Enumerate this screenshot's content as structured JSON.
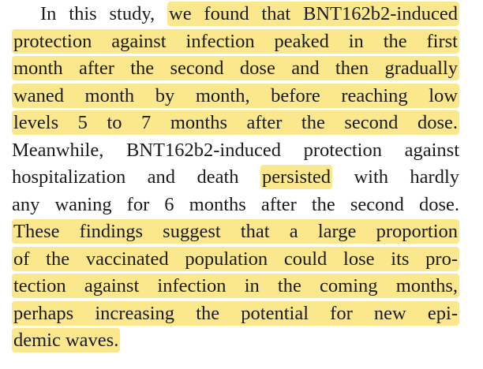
{
  "paragraph": {
    "lines": [
      [
        {
          "text": "In this study,",
          "highlight": false
        },
        {
          "text": "we found that BNT162b2-induced",
          "highlight": true
        }
      ],
      [
        {
          "text": "protection against infection peaked in the first",
          "highlight": true
        }
      ],
      [
        {
          "text": "month after the second dose and then gradually",
          "highlight": true
        }
      ],
      [
        {
          "text": "waned month by month, before reaching low",
          "highlight": true
        }
      ],
      [
        {
          "text": "levels 5 to 7 months after the second dose.",
          "highlight": true
        }
      ],
      [
        {
          "text": "Meanwhile, BNT162b2-induced protection against",
          "highlight": false
        }
      ],
      [
        {
          "text": "hospitalization and death",
          "highlight": false
        },
        {
          "text": "persisted",
          "highlight": true
        },
        {
          "text": "with hardly",
          "highlight": false
        }
      ],
      [
        {
          "text": "any waning for 6 months after the second dose.",
          "highlight": false
        }
      ],
      [
        {
          "text": "These findings suggest that a large proportion",
          "highlight": true
        }
      ],
      [
        {
          "text": "of the vaccinated population could lose its pro-",
          "highlight": true
        }
      ],
      [
        {
          "text": "tection against infection in the coming months,",
          "highlight": true
        }
      ],
      [
        {
          "text": "perhaps increasing the potential for new epi-",
          "highlight": true
        }
      ],
      [
        {
          "text": "demic waves.",
          "highlight": true
        }
      ]
    ]
  }
}
